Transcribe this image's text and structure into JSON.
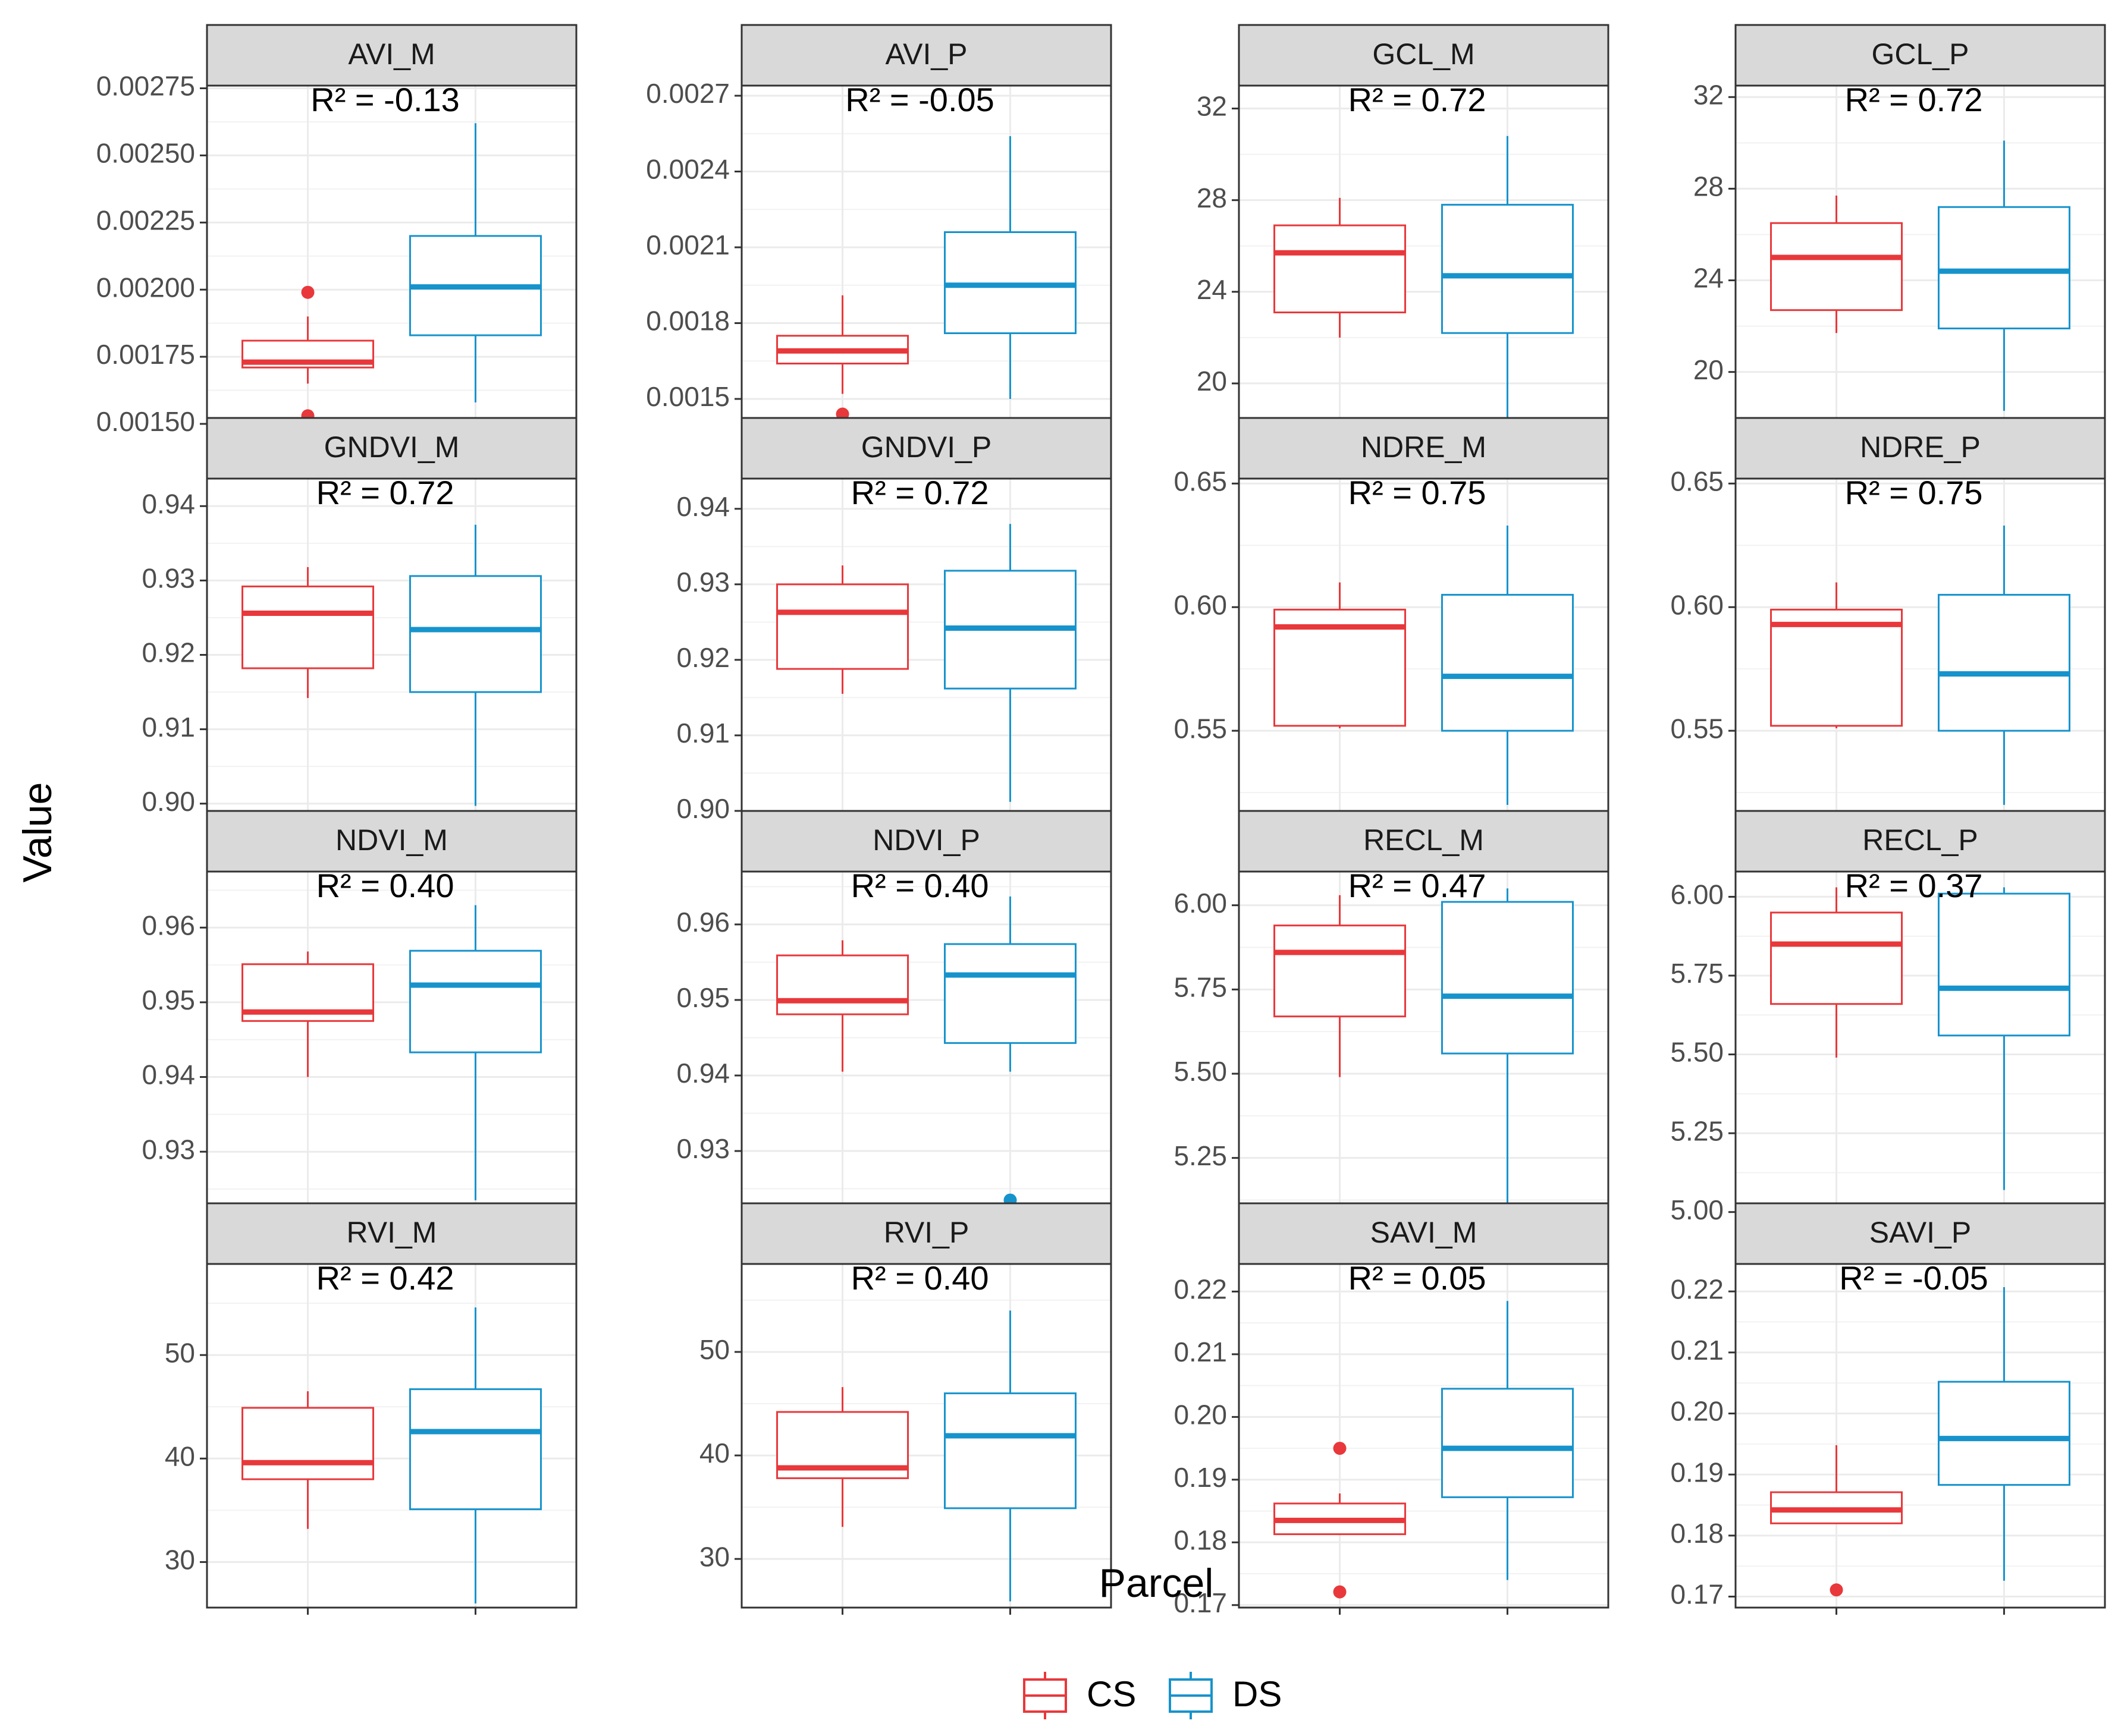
{
  "chart_data": {
    "type": "boxplot",
    "xlabel": "Parcel",
    "ylabel": "Value",
    "legend": {
      "position": "bottom",
      "entries": [
        {
          "name": "CS",
          "color": "#E8383B"
        },
        {
          "name": "DS",
          "color": "#1793CC"
        }
      ]
    },
    "grid": true,
    "panels": [
      {
        "title": "AVI_M",
        "annotation": "R² = -0.13",
        "ylim": [
          0.00148,
          0.00276
        ],
        "yticks": [
          0.0015,
          0.00175,
          0.002,
          0.00225,
          0.0025,
          0.00275
        ],
        "ytick_labels": [
          "0.00150",
          "0.00175",
          "0.00200",
          "0.00225",
          "0.00250",
          "0.00275"
        ],
        "boxes": [
          {
            "group": "CS",
            "min": 0.00165,
            "q1": 0.00171,
            "median": 0.00173,
            "q3": 0.00181,
            "max": 0.0019,
            "outliers": [
              0.00199,
              0.00153
            ]
          },
          {
            "group": "DS",
            "min": 0.00158,
            "q1": 0.00183,
            "median": 0.00201,
            "q3": 0.0022,
            "max": 0.00262,
            "outliers": []
          }
        ]
      },
      {
        "title": "AVI_P",
        "annotation": "R² = -0.05",
        "ylim": [
          0.00138,
          0.00274
        ],
        "yticks": [
          0.0015,
          0.0018,
          0.0021,
          0.0024,
          0.0027
        ],
        "ytick_labels": [
          "0.0015",
          "0.0018",
          "0.0021",
          "0.0024",
          "0.0027"
        ],
        "boxes": [
          {
            "group": "CS",
            "min": 0.00152,
            "q1": 0.00164,
            "median": 0.00169,
            "q3": 0.00175,
            "max": 0.00191,
            "outliers": [
              0.00144
            ]
          },
          {
            "group": "DS",
            "min": 0.0015,
            "q1": 0.00176,
            "median": 0.00195,
            "q3": 0.00216,
            "max": 0.00254,
            "outliers": []
          }
        ]
      },
      {
        "title": "GCL_M",
        "annotation": "R² = 0.72",
        "ylim": [
          18.0,
          33.0
        ],
        "yticks": [
          20,
          24,
          28,
          32
        ],
        "ytick_labels": [
          "20",
          "24",
          "28",
          "32"
        ],
        "boxes": [
          {
            "group": "CS",
            "min": 22.0,
            "q1": 23.1,
            "median": 25.7,
            "q3": 26.9,
            "max": 28.1,
            "outliers": []
          },
          {
            "group": "DS",
            "min": 18.5,
            "q1": 22.2,
            "median": 24.7,
            "q3": 27.8,
            "max": 30.8,
            "outliers": []
          }
        ]
      },
      {
        "title": "GCL_P",
        "annotation": "R² = 0.72",
        "ylim": [
          17.5,
          32.5
        ],
        "yticks": [
          20,
          24,
          28,
          32
        ],
        "ytick_labels": [
          "20",
          "24",
          "28",
          "32"
        ],
        "boxes": [
          {
            "group": "CS",
            "min": 21.7,
            "q1": 22.7,
            "median": 25.0,
            "q3": 26.5,
            "max": 27.7,
            "outliers": []
          },
          {
            "group": "DS",
            "min": 18.3,
            "q1": 21.9,
            "median": 24.4,
            "q3": 27.2,
            "max": 30.1,
            "outliers": []
          }
        ]
      },
      {
        "title": "GNDVI_M",
        "annotation": "R² = 0.72",
        "ylim": [
          0.8975,
          0.9437
        ],
        "yticks": [
          0.9,
          0.91,
          0.92,
          0.93,
          0.94
        ],
        "ytick_labels": [
          "0.90",
          "0.91",
          "0.92",
          "0.93",
          "0.94"
        ],
        "boxes": [
          {
            "group": "CS",
            "min": 0.9142,
            "q1": 0.9182,
            "median": 0.9256,
            "q3": 0.9292,
            "max": 0.9318,
            "outliers": []
          },
          {
            "group": "DS",
            "min": 0.8997,
            "q1": 0.915,
            "median": 0.9234,
            "q3": 0.9306,
            "max": 0.9375,
            "outliers": []
          }
        ]
      },
      {
        "title": "GNDVI_P",
        "annotation": "R² = 0.72",
        "ylim": [
          0.8985,
          0.944
        ],
        "yticks": [
          0.9,
          0.91,
          0.92,
          0.93,
          0.94
        ],
        "ytick_labels": [
          "0.90",
          "0.91",
          "0.92",
          "0.93",
          "0.94"
        ],
        "boxes": [
          {
            "group": "CS",
            "min": 0.9155,
            "q1": 0.9188,
            "median": 0.9263,
            "q3": 0.93,
            "max": 0.9325,
            "outliers": []
          },
          {
            "group": "DS",
            "min": 0.9012,
            "q1": 0.9162,
            "median": 0.9242,
            "q3": 0.9318,
            "max": 0.938,
            "outliers": []
          }
        ]
      },
      {
        "title": "NDRE_M",
        "annotation": "R² = 0.75",
        "ylim": [
          0.513,
          0.652
        ],
        "yticks": [
          0.55,
          0.6,
          0.65
        ],
        "ytick_labels": [
          "0.55",
          "0.60",
          "0.65"
        ],
        "boxes": [
          {
            "group": "CS",
            "min": 0.551,
            "q1": 0.552,
            "median": 0.592,
            "q3": 0.599,
            "max": 0.61,
            "outliers": []
          },
          {
            "group": "DS",
            "min": 0.52,
            "q1": 0.55,
            "median": 0.572,
            "q3": 0.605,
            "max": 0.633,
            "outliers": []
          }
        ]
      },
      {
        "title": "NDRE_P",
        "annotation": "R² = 0.75",
        "ylim": [
          0.513,
          0.652
        ],
        "yticks": [
          0.55,
          0.6,
          0.65
        ],
        "ytick_labels": [
          "0.55",
          "0.60",
          "0.65"
        ],
        "boxes": [
          {
            "group": "CS",
            "min": 0.551,
            "q1": 0.552,
            "median": 0.593,
            "q3": 0.599,
            "max": 0.61,
            "outliers": []
          },
          {
            "group": "DS",
            "min": 0.52,
            "q1": 0.55,
            "median": 0.573,
            "q3": 0.605,
            "max": 0.633,
            "outliers": []
          }
        ]
      },
      {
        "title": "NDVI_M",
        "annotation": "R² = 0.40",
        "ylim": [
          0.9215,
          0.9675
        ],
        "yticks": [
          0.93,
          0.94,
          0.95,
          0.96
        ],
        "ytick_labels": [
          "0.93",
          "0.94",
          "0.95",
          "0.96"
        ],
        "boxes": [
          {
            "group": "CS",
            "min": 0.94,
            "q1": 0.9475,
            "median": 0.9487,
            "q3": 0.9551,
            "max": 0.9568,
            "outliers": []
          },
          {
            "group": "DS",
            "min": 0.9235,
            "q1": 0.9433,
            "median": 0.9523,
            "q3": 0.9569,
            "max": 0.963,
            "outliers": []
          }
        ]
      },
      {
        "title": "NDVI_P",
        "annotation": "R² = 0.40",
        "ylim": [
          0.9215,
          0.967
        ],
        "yticks": [
          0.93,
          0.94,
          0.95,
          0.96
        ],
        "ytick_labels": [
          "0.93",
          "0.94",
          "0.95",
          "0.96"
        ],
        "boxes": [
          {
            "group": "CS",
            "min": 0.9405,
            "q1": 0.9481,
            "median": 0.9499,
            "q3": 0.9559,
            "max": 0.9579,
            "outliers": []
          },
          {
            "group": "DS",
            "min": 0.9405,
            "q1": 0.9443,
            "median": 0.9533,
            "q3": 0.9574,
            "max": 0.9637,
            "outliers": [
              0.9235
            ]
          }
        ]
      },
      {
        "title": "RECL_M",
        "annotation": "R² = 0.47",
        "ylim": [
          5.08,
          6.1
        ],
        "yticks": [
          5.25,
          5.5,
          5.75,
          6.0
        ],
        "ytick_labels": [
          "5.25",
          "5.50",
          "5.75",
          "6.00"
        ],
        "boxes": [
          {
            "group": "CS",
            "min": 5.49,
            "q1": 5.67,
            "median": 5.86,
            "q3": 5.94,
            "max": 6.03,
            "outliers": []
          },
          {
            "group": "DS",
            "min": 5.07,
            "q1": 5.56,
            "median": 5.73,
            "q3": 6.01,
            "max": 6.05,
            "outliers": []
          }
        ]
      },
      {
        "title": "RECL_P",
        "annotation": "R² = 0.37",
        "ylim": [
          4.99,
          6.08
        ],
        "yticks": [
          5.0,
          5.25,
          5.5,
          5.75,
          6.0
        ],
        "ytick_labels": [
          "5.00",
          "5.25",
          "5.50",
          "5.75",
          "6.00"
        ],
        "boxes": [
          {
            "group": "CS",
            "min": 5.49,
            "q1": 5.66,
            "median": 5.85,
            "q3": 5.95,
            "max": 6.03,
            "outliers": []
          },
          {
            "group": "DS",
            "min": 5.07,
            "q1": 5.56,
            "median": 5.71,
            "q3": 6.01,
            "max": 6.03,
            "outliers": []
          }
        ]
      },
      {
        "title": "RVI_M",
        "annotation": "R² = 0.42",
        "ylim": [
          25.6,
          58.8
        ],
        "yticks": [
          30,
          40,
          50
        ],
        "ytick_labels": [
          "30",
          "40",
          "50"
        ],
        "boxes": [
          {
            "group": "CS",
            "min": 33.2,
            "q1": 38.0,
            "median": 39.6,
            "q3": 44.9,
            "max": 46.5,
            "outliers": []
          },
          {
            "group": "DS",
            "min": 26.0,
            "q1": 35.1,
            "median": 42.6,
            "q3": 46.7,
            "max": 54.6,
            "outliers": []
          }
        ]
      },
      {
        "title": "RVI_P",
        "annotation": "R² = 0.40",
        "ylim": [
          25.3,
          58.5
        ],
        "yticks": [
          30,
          40,
          50
        ],
        "ytick_labels": [
          "30",
          "40",
          "50"
        ],
        "boxes": [
          {
            "group": "CS",
            "min": 33.1,
            "q1": 37.8,
            "median": 38.8,
            "q3": 44.2,
            "max": 46.6,
            "outliers": []
          },
          {
            "group": "DS",
            "min": 25.9,
            "q1": 34.9,
            "median": 41.9,
            "q3": 46.0,
            "max": 54.0,
            "outliers": []
          }
        ]
      },
      {
        "title": "SAVI_M",
        "annotation": "R² = 0.05",
        "ylim": [
          0.1696,
          0.2244
        ],
        "yticks": [
          0.17,
          0.18,
          0.19,
          0.2,
          0.21,
          0.22
        ],
        "ytick_labels": [
          "0.17",
          "0.18",
          "0.19",
          "0.20",
          "0.21",
          "0.22"
        ],
        "boxes": [
          {
            "group": "CS",
            "min": 0.1813,
            "q1": 0.1813,
            "median": 0.1835,
            "q3": 0.1862,
            "max": 0.1878,
            "outliers": [
              0.195,
              0.1721
            ]
          },
          {
            "group": "DS",
            "min": 0.174,
            "q1": 0.1872,
            "median": 0.195,
            "q3": 0.2045,
            "max": 0.2185,
            "outliers": []
          }
        ]
      },
      {
        "title": "SAVI_P",
        "annotation": "R² = -0.05",
        "ylim": [
          0.1682,
          0.2245
        ],
        "yticks": [
          0.17,
          0.18,
          0.19,
          0.2,
          0.21,
          0.22
        ],
        "ytick_labels": [
          "0.17",
          "0.18",
          "0.19",
          "0.20",
          "0.21",
          "0.22"
        ],
        "boxes": [
          {
            "group": "CS",
            "min": 0.182,
            "q1": 0.182,
            "median": 0.1842,
            "q3": 0.1871,
            "max": 0.1948,
            "outliers": [
              0.1711
            ]
          },
          {
            "group": "DS",
            "min": 0.1726,
            "q1": 0.1883,
            "median": 0.1959,
            "q3": 0.2052,
            "max": 0.2207,
            "outliers": []
          }
        ]
      }
    ]
  }
}
